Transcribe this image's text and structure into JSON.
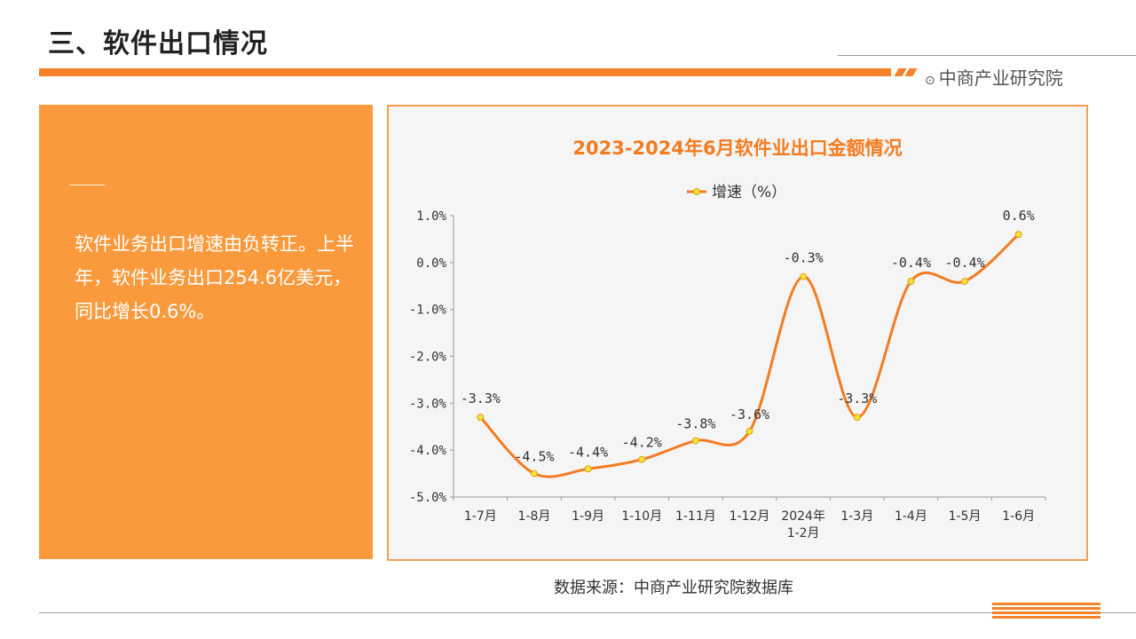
{
  "header": {
    "title": "三、软件出口情况",
    "brand": "中商产业研究院",
    "brand_icon": "⊙"
  },
  "summary": {
    "text": "软件业务出口增速由负转正。上半年，软件业务出口254.6亿美元，同比增长0.6%。"
  },
  "source": "数据来源：中商产业研究院数据库",
  "colors": {
    "accent": "#f6832a",
    "panel": "#fa9a3c",
    "title": "#f47c20",
    "line": "#f47c20",
    "marker": "#f5e23a"
  },
  "chart_data": {
    "type": "line",
    "title": "2023-2024年6月软件业出口金额情况",
    "xlabel": "",
    "ylabel": "",
    "categories": [
      "1-7月",
      "1-8月",
      "1-9月",
      "1-10月",
      "1-11月",
      "1-12月",
      "2024年\n1-2月",
      "1-3月",
      "1-4月",
      "1-5月",
      "1-6月"
    ],
    "series": [
      {
        "name": "增速（%）",
        "values": [
          -3.3,
          -4.5,
          -4.4,
          -4.2,
          -3.8,
          -3.6,
          -0.3,
          -3.3,
          -0.4,
          -0.4,
          0.6
        ]
      }
    ],
    "data_labels": [
      "-3.3%",
      "-4.5%",
      "-4.4%",
      "-4.2%",
      "-3.8%",
      "-3.6%",
      "-0.3%",
      "-3.3%",
      "-0.4%",
      "-0.4%",
      "0.6%"
    ],
    "y_ticks": [
      "1.0%",
      "0.0%",
      "-1.0%",
      "-2.0%",
      "-3.0%",
      "-4.0%",
      "-5.0%"
    ],
    "y_tick_values": [
      1,
      0,
      -1,
      -2,
      -3,
      -4,
      -5
    ],
    "ylim": [
      -5,
      1
    ],
    "grid": false,
    "legend_position": "top-center",
    "smooth": true
  }
}
